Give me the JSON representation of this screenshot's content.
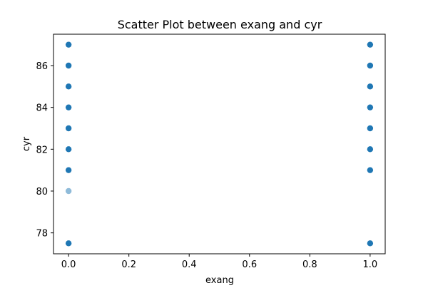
{
  "chart_data": {
    "type": "scatter",
    "title": "Scatter Plot between exang and cyr",
    "xlabel": "exang",
    "ylabel": "cyr",
    "xlim": [
      -0.05,
      1.05
    ],
    "ylim": [
      77.0,
      87.5
    ],
    "xticks": [
      0.0,
      0.2,
      0.4,
      0.6,
      0.8,
      1.0
    ],
    "xtick_labels": [
      "0.0",
      "0.2",
      "0.4",
      "0.6",
      "0.8",
      "1.0"
    ],
    "yticks": [
      78,
      80,
      82,
      84,
      86
    ],
    "ytick_labels": [
      "78",
      "80",
      "82",
      "84",
      "86"
    ],
    "grid": false,
    "marker_color": "#1f77b4",
    "points": [
      {
        "x": 0,
        "y": 87,
        "alpha": 1.0
      },
      {
        "x": 0,
        "y": 86,
        "alpha": 1.0
      },
      {
        "x": 0,
        "y": 85,
        "alpha": 1.0
      },
      {
        "x": 0,
        "y": 84,
        "alpha": 1.0
      },
      {
        "x": 0,
        "y": 83,
        "alpha": 1.0
      },
      {
        "x": 0,
        "y": 82,
        "alpha": 1.0
      },
      {
        "x": 0,
        "y": 81,
        "alpha": 1.0
      },
      {
        "x": 0,
        "y": 80,
        "alpha": 0.5
      },
      {
        "x": 0,
        "y": 77.5,
        "alpha": 1.0
      },
      {
        "x": 1,
        "y": 87,
        "alpha": 1.0
      },
      {
        "x": 1,
        "y": 86,
        "alpha": 1.0
      },
      {
        "x": 1,
        "y": 85,
        "alpha": 1.0
      },
      {
        "x": 1,
        "y": 84,
        "alpha": 1.0
      },
      {
        "x": 1,
        "y": 83,
        "alpha": 1.0
      },
      {
        "x": 1,
        "y": 82,
        "alpha": 1.0
      },
      {
        "x": 1,
        "y": 81,
        "alpha": 1.0
      },
      {
        "x": 1,
        "y": 77.5,
        "alpha": 1.0
      }
    ]
  }
}
